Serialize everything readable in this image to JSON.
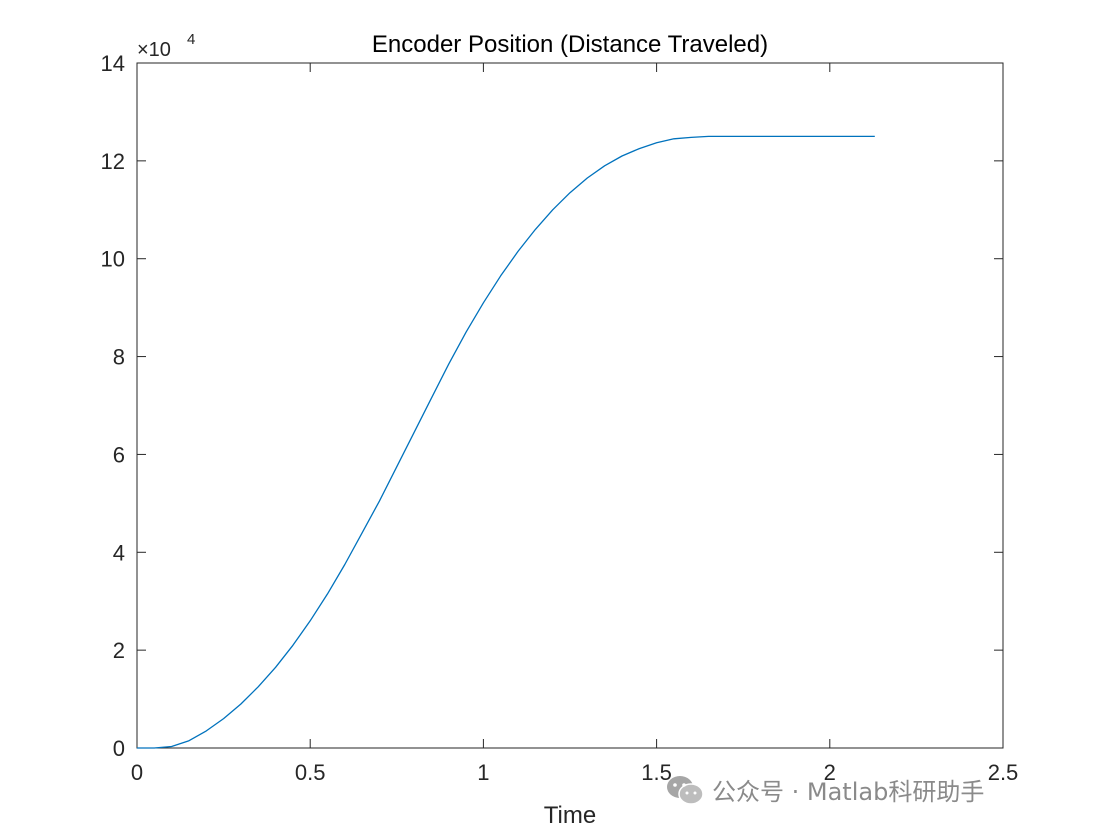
{
  "chart_data": {
    "type": "line",
    "title": "Encoder Position (Distance Traveled)",
    "xlabel": "Time",
    "ylabel": "",
    "xlim": [
      0,
      2.5
    ],
    "ylim": [
      0,
      14
    ],
    "y_multiplier_base": "×10",
    "y_multiplier_exponent": "4",
    "xticks": [
      "0",
      "0.5",
      "1",
      "1.5",
      "2",
      "2.5"
    ],
    "yticks": [
      "0",
      "2",
      "4",
      "6",
      "8",
      "10",
      "12",
      "14"
    ],
    "grid": false,
    "series": [
      {
        "color": "#0072BD",
        "x": [
          0,
          0.05,
          0.1,
          0.15,
          0.2,
          0.25,
          0.3,
          0.35,
          0.4,
          0.45,
          0.5,
          0.55,
          0.6,
          0.65,
          0.7,
          0.75,
          0.8,
          0.85,
          0.9,
          0.95,
          1.0,
          1.05,
          1.1,
          1.15,
          1.2,
          1.25,
          1.3,
          1.35,
          1.4,
          1.45,
          1.5,
          1.55,
          1.6,
          1.65,
          1.7,
          1.75,
          1.8,
          1.85,
          1.9,
          1.95,
          2.0,
          2.05,
          2.1,
          2.13
        ],
        "y": [
          0,
          0,
          0.03,
          0.15,
          0.35,
          0.6,
          0.9,
          1.25,
          1.65,
          2.1,
          2.6,
          3.15,
          3.75,
          4.4,
          5.05,
          5.75,
          6.45,
          7.15,
          7.85,
          8.5,
          9.1,
          9.65,
          10.15,
          10.6,
          11.0,
          11.35,
          11.65,
          11.9,
          12.1,
          12.25,
          12.37,
          12.45,
          12.48,
          12.5,
          12.5,
          12.5,
          12.5,
          12.5,
          12.5,
          12.5,
          12.5,
          12.5,
          12.5,
          12.5
        ]
      }
    ]
  },
  "watermark": {
    "text": "公众号 · Matlab科研助手",
    "icon": "wechat-icon"
  }
}
